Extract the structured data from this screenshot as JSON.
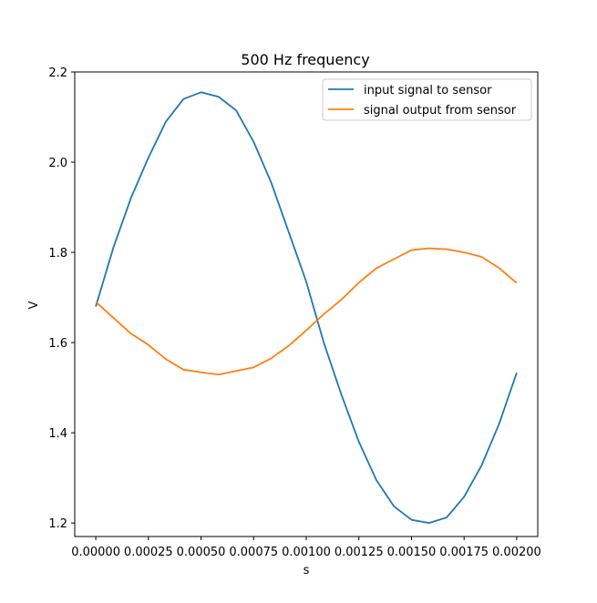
{
  "chart_data": {
    "type": "line",
    "title": "500 Hz frequency",
    "xlabel": "s",
    "ylabel": "V",
    "xlim": [
      -0.0001,
      0.0021
    ],
    "ylim": [
      1.17,
      2.2
    ],
    "xticks": [
      0.0,
      0.00025,
      0.0005,
      0.00075,
      0.001,
      0.00125,
      0.0015,
      0.00175,
      0.002
    ],
    "xtick_labels": [
      "0.00000",
      "0.00025",
      "0.00050",
      "0.00075",
      "0.00100",
      "0.00125",
      "0.00150",
      "0.00175",
      "0.00200"
    ],
    "yticks": [
      1.2,
      1.4,
      1.6,
      1.8,
      2.0,
      2.2
    ],
    "ytick_labels": [
      "1.2",
      "1.4",
      "1.6",
      "1.8",
      "2.0",
      "2.2"
    ],
    "grid": false,
    "legend_position": "top-right",
    "x": [
      0.0,
      8.33e-05,
      0.0001667,
      0.00025,
      0.0003333,
      0.0004167,
      0.0005,
      0.0005833,
      0.0006667,
      0.00075,
      0.0008333,
      0.0009167,
      0.001,
      0.0010833,
      0.0011667,
      0.00125,
      0.0013333,
      0.0014167,
      0.0015,
      0.0015833,
      0.0016667,
      0.00175,
      0.0018333,
      0.0019167,
      0.002
    ],
    "series": [
      {
        "name": "input signal to sensor",
        "color": "#1f77b4",
        "values": [
          1.68,
          1.81,
          1.92,
          2.01,
          2.09,
          2.14,
          2.155,
          2.145,
          2.115,
          2.045,
          1.955,
          1.845,
          1.735,
          1.6,
          1.485,
          1.38,
          1.295,
          1.237,
          1.207,
          1.2,
          1.212,
          1.258,
          1.328,
          1.42,
          1.533
        ]
      },
      {
        "name": "signal output from sensor",
        "color": "#ff7f0e",
        "values": [
          1.69,
          1.655,
          1.62,
          1.595,
          1.563,
          1.54,
          1.534,
          1.529,
          1.537,
          1.545,
          1.565,
          1.593,
          1.627,
          1.663,
          1.695,
          1.733,
          1.765,
          1.785,
          1.805,
          1.809,
          1.807,
          1.8,
          1.79,
          1.765,
          1.732
        ]
      }
    ]
  }
}
